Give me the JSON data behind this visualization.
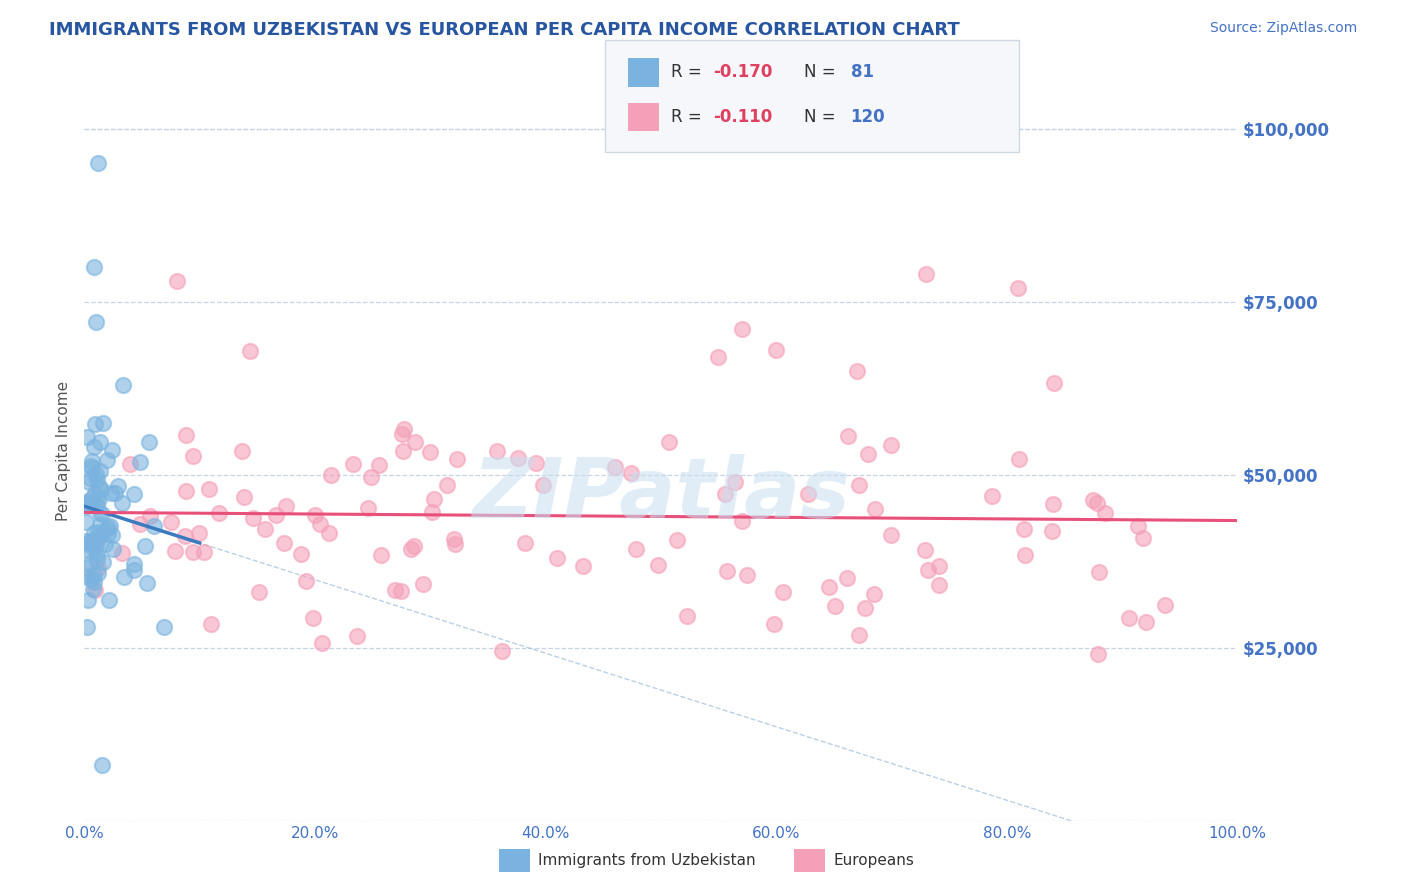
{
  "title": "IMMIGRANTS FROM UZBEKISTAN VS EUROPEAN PER CAPITA INCOME CORRELATION CHART",
  "source": "Source: ZipAtlas.com",
  "ylabel": "Per Capita Income",
  "xlim": [
    0,
    100
  ],
  "ylim": [
    0,
    107000
  ],
  "yticks": [
    0,
    25000,
    50000,
    75000,
    100000
  ],
  "ytick_labels": [
    "",
    "$25,000",
    "$50,000",
    "$75,000",
    "$100,000"
  ],
  "xtick_labels": [
    "0.0%",
    "20.0%",
    "40.0%",
    "60.0%",
    "80.0%",
    "100.0%"
  ],
  "series1_color": "#7ab3df",
  "series2_color": "#f4a0b8",
  "trend1_color": "#3a7abf",
  "trend2_color": "#e8507a",
  "dash_color": "#aac4de",
  "watermark": "ZIPatlas",
  "watermark_color": "#c8dff0",
  "title_color": "#2855a0",
  "source_color": "#4472c4",
  "axis_label_color": "#555555",
  "tick_color": "#4472c4",
  "grid_color": "#c8d4e4",
  "legend_bg": "#f5f7fa",
  "legend_border": "#d0d8e4",
  "background_color": "#ffffff",
  "R1": -0.17,
  "R2": -0.11,
  "N1": 81,
  "N2": 120,
  "legend_label1": "Immigrants from Uzbekistan",
  "legend_label2": "Europeans"
}
